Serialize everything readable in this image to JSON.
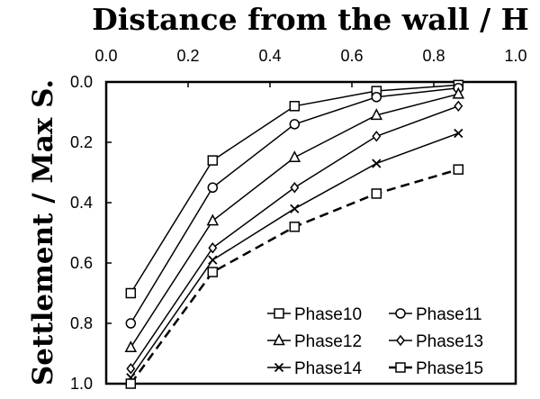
{
  "chart_data": {
    "type": "line",
    "xlabel": "Distance from the wall / H",
    "ylabel": "Settlement / Max S.",
    "xlim": [
      0.0,
      1.0
    ],
    "ylim": [
      0.0,
      1.0
    ],
    "y_inverted": true,
    "x_axis_position": "top",
    "xticks": [
      "0.0",
      "0.2",
      "0.4",
      "0.6",
      "0.8",
      "1.0"
    ],
    "yticks": [
      "0.0",
      "0.2",
      "0.4",
      "0.6",
      "0.8",
      "1.0"
    ],
    "grid": false,
    "legend_position": "bottom-right",
    "x": [
      0.06,
      0.26,
      0.46,
      0.66,
      0.86
    ],
    "series": [
      {
        "name": "Phase10",
        "marker": "square",
        "line": "solid",
        "values": [
          0.7,
          0.26,
          0.08,
          0.03,
          0.01
        ]
      },
      {
        "name": "Phase11",
        "marker": "circle",
        "line": "solid",
        "values": [
          0.8,
          0.35,
          0.14,
          0.05,
          0.02
        ]
      },
      {
        "name": "Phase12",
        "marker": "triangle",
        "line": "solid",
        "values": [
          0.88,
          0.46,
          0.25,
          0.11,
          0.04
        ]
      },
      {
        "name": "Phase13",
        "marker": "diamond",
        "line": "solid",
        "values": [
          0.95,
          0.55,
          0.35,
          0.18,
          0.08
        ]
      },
      {
        "name": "Phase14",
        "marker": "x",
        "line": "solid",
        "values": [
          0.98,
          0.59,
          0.42,
          0.27,
          0.17
        ]
      },
      {
        "name": "Phase15",
        "marker": "square",
        "line": "dashed",
        "values": [
          1.0,
          0.63,
          0.48,
          0.37,
          0.29
        ]
      }
    ]
  }
}
